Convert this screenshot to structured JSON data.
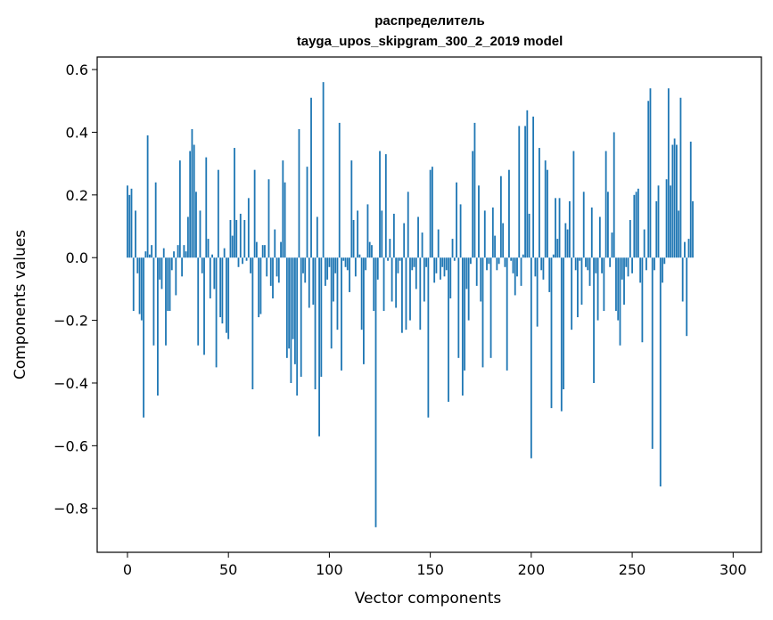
{
  "chart_data": {
    "type": "bar",
    "title": "распределитель",
    "subtitle": "tayga_upos_skipgram_300_2_2019 model",
    "xlabel": "Vector components",
    "ylabel": "Components values",
    "xlim": [
      -15,
      314
    ],
    "ylim": [
      -0.94,
      0.64
    ],
    "xticks": [
      0,
      50,
      100,
      150,
      200,
      250,
      300
    ],
    "xtick_labels": [
      "0",
      "50",
      "100",
      "150",
      "200",
      "250",
      "300"
    ],
    "yticks": [
      0.6,
      0.4,
      0.2,
      0.0,
      -0.2,
      -0.4,
      -0.6,
      -0.8
    ],
    "ytick_labels": [
      "0.6",
      "0.4",
      "0.2",
      "0.0",
      "−0.2",
      "−0.4",
      "−0.6",
      "−0.8"
    ],
    "bar_color": "#1f77b4",
    "values": [
      0.23,
      0.2,
      0.22,
      -0.17,
      0.15,
      -0.05,
      -0.18,
      -0.2,
      -0.51,
      0.02,
      0.39,
      0.01,
      0.04,
      -0.28,
      0.24,
      -0.44,
      -0.07,
      -0.1,
      0.03,
      -0.28,
      -0.17,
      -0.17,
      -0.04,
      0.02,
      -0.12,
      0.04,
      0.31,
      -0.06,
      0.04,
      0.02,
      0.13,
      0.34,
      0.41,
      0.36,
      0.21,
      -0.28,
      0.15,
      -0.05,
      -0.31,
      0.32,
      0.06,
      -0.13,
      0.01,
      -0.1,
      -0.35,
      0.28,
      -0.19,
      -0.21,
      0.03,
      -0.24,
      -0.26,
      0.12,
      0.07,
      0.35,
      0.12,
      -0.03,
      0.14,
      -0.02,
      0.12,
      -0.01,
      0.19,
      -0.05,
      -0.42,
      0.28,
      0.05,
      -0.19,
      -0.18,
      0.04,
      0.04,
      -0.06,
      0.25,
      -0.09,
      -0.13,
      0.09,
      -0.06,
      -0.08,
      0.05,
      0.31,
      0.24,
      -0.32,
      -0.29,
      -0.4,
      -0.26,
      -0.34,
      -0.44,
      0.41,
      -0.38,
      -0.05,
      -0.08,
      0.29,
      -0.16,
      0.51,
      -0.15,
      -0.42,
      0.13,
      -0.57,
      -0.38,
      0.56,
      -0.09,
      -0.07,
      -0.03,
      -0.29,
      -0.14,
      -0.05,
      -0.23,
      0.43,
      -0.36,
      -0.01,
      -0.03,
      -0.04,
      -0.11,
      0.31,
      0.12,
      -0.06,
      0.15,
      0.01,
      -0.23,
      -0.34,
      -0.04,
      0.17,
      0.05,
      0.04,
      -0.17,
      -0.86,
      -0.07,
      0.34,
      0.15,
      -0.17,
      0.33,
      -0.01,
      0.06,
      -0.14,
      0.14,
      -0.16,
      -0.05,
      -0.01,
      -0.24,
      0.11,
      -0.23,
      0.21,
      -0.2,
      -0.04,
      -0.03,
      -0.1,
      0.13,
      -0.23,
      0.08,
      -0.14,
      -0.03,
      -0.51,
      0.28,
      0.29,
      -0.08,
      -0.05,
      0.09,
      -0.07,
      -0.03,
      -0.06,
      -0.04,
      -0.46,
      -0.13,
      0.06,
      -0.01,
      0.24,
      -0.32,
      0.17,
      -0.44,
      -0.36,
      -0.1,
      -0.2,
      -0.02,
      0.34,
      0.43,
      -0.09,
      0.23,
      -0.14,
      -0.35,
      0.15,
      -0.04,
      -0.02,
      -0.32,
      0.16,
      0.07,
      -0.04,
      -0.02,
      0.26,
      0.11,
      -0.03,
      -0.36,
      0.28,
      -0.01,
      -0.05,
      -0.12,
      -0.06,
      0.42,
      -0.09,
      0.01,
      0.42,
      0.47,
      0.14,
      -0.64,
      0.45,
      -0.06,
      -0.22,
      0.35,
      -0.04,
      -0.07,
      0.31,
      0.28,
      -0.11,
      -0.48,
      0.01,
      0.19,
      0.06,
      0.19,
      -0.49,
      -0.42,
      0.11,
      0.09,
      0.18,
      -0.23,
      0.34,
      -0.04,
      -0.19,
      -0.01,
      -0.15,
      0.21,
      -0.03,
      -0.04,
      -0.09,
      0.16,
      -0.4,
      -0.05,
      -0.2,
      0.13,
      -0.05,
      -0.17,
      0.34,
      0.21,
      -0.03,
      0.08,
      0.4,
      -0.17,
      -0.2,
      -0.28,
      -0.07,
      -0.15,
      -0.03,
      -0.06,
      0.12,
      -0.05,
      0.2,
      0.21,
      0.22,
      -0.08,
      -0.27,
      0.09,
      -0.04,
      0.5,
      0.54,
      -0.61,
      -0.04,
      0.18,
      0.23,
      -0.73,
      -0.08,
      -0.02,
      0.25,
      0.54,
      0.23,
      0.36,
      0.38,
      0.36,
      0.15,
      0.51,
      -0.14,
      0.05,
      -0.25,
      0.06,
      0.37,
      0.18
    ]
  }
}
